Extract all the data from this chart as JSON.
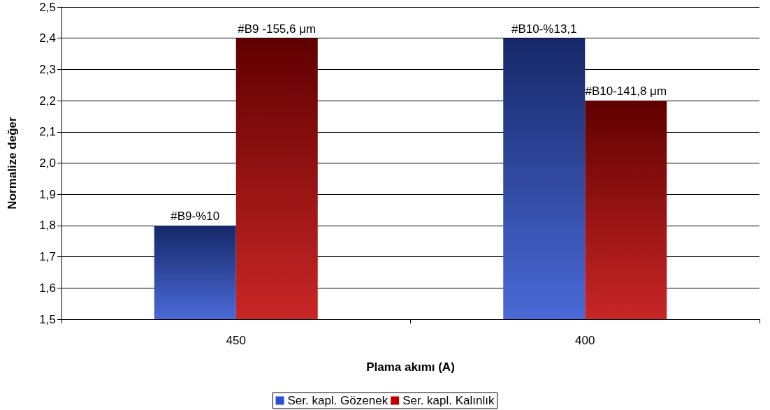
{
  "chart_data": {
    "type": "bar",
    "xlabel": "Plama akımı (A)",
    "ylabel": "Normalize değer",
    "categories": [
      "450",
      "400"
    ],
    "series": [
      {
        "name": "Ser. kapl. Gözenek",
        "color": "#2b50d0",
        "values": [
          1.8,
          2.4
        ]
      },
      {
        "name": "Ser. kapl. Kalınlık",
        "color": "#c00000",
        "values": [
          2.4,
          2.2
        ]
      }
    ],
    "annotations": [
      {
        "text": "#B9-%10",
        "x": "450",
        "y": 1.8
      },
      {
        "text": "#B9 -155,6 μm",
        "x": "450",
        "y": 2.4
      },
      {
        "text": "#B10-%13,1",
        "x": "400",
        "y": 2.4
      },
      {
        "text": "#B10-141,8 μm",
        "x": "400",
        "y": 2.2
      }
    ],
    "ylim": [
      1.5,
      2.5
    ],
    "yticks": [
      {
        "value": 1.5,
        "label": "1,5"
      },
      {
        "value": 1.6,
        "label": "1,6"
      },
      {
        "value": 1.7,
        "label": "1,7"
      },
      {
        "value": 1.8,
        "label": "1,8"
      },
      {
        "value": 1.9,
        "label": "1,9"
      },
      {
        "value": 2.0,
        "label": "2,0"
      },
      {
        "value": 2.1,
        "label": "2,1"
      },
      {
        "value": 2.2,
        "label": "2,2"
      },
      {
        "value": 2.3,
        "label": "2,3"
      },
      {
        "value": 2.4,
        "label": "2,4"
      },
      {
        "value": 2.5,
        "label": "2,5"
      }
    ],
    "grid": "y",
    "legend": "bottom"
  }
}
